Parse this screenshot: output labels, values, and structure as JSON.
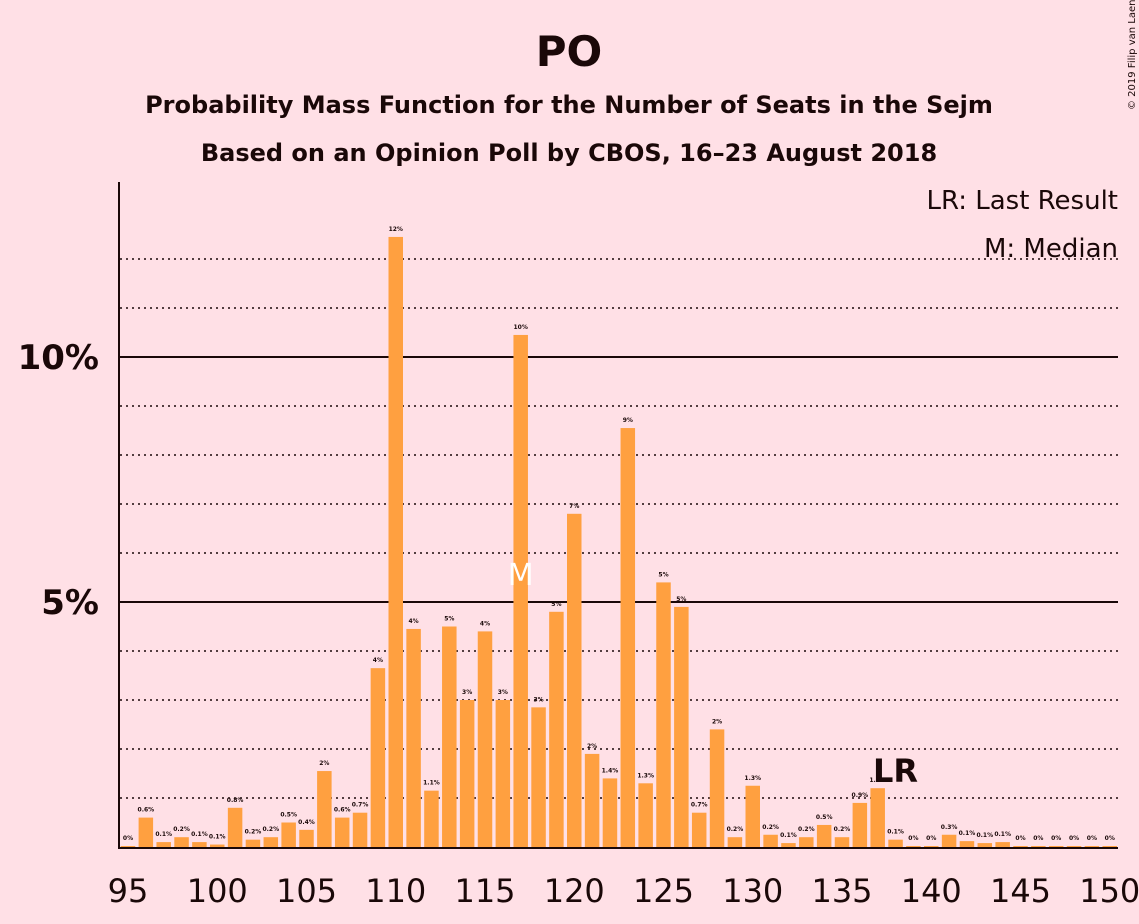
{
  "copyright": "© 2019 Filip van Laenen",
  "chart_data": {
    "type": "bar",
    "title": "PO",
    "subtitle": "Probability Mass Function for the Number of Seats in the Sejm",
    "subtitle2": "Based on an Opinion Poll by CBOS, 16–23 August 2018",
    "xlabel": "",
    "ylabel": "",
    "x_tick_labels": [
      "95",
      "100",
      "105",
      "110",
      "115",
      "120",
      "125",
      "130",
      "135",
      "140",
      "145",
      "150"
    ],
    "y_tick_labels": [
      "5%",
      "10%"
    ],
    "ylim": [
      0,
      13.5
    ],
    "grid": "dotted every 1%, solid at 5% and 10%",
    "legend_position": "top-right",
    "legend": [
      "LR: Last Result",
      "M: Median"
    ],
    "last_result_seat": 138,
    "last_result_label": "LR",
    "median_seat": 117,
    "median_label": "M",
    "bar_color": "#FFA040",
    "x": [
      95,
      96,
      97,
      98,
      99,
      100,
      101,
      102,
      103,
      104,
      105,
      106,
      107,
      108,
      109,
      110,
      111,
      112,
      113,
      114,
      115,
      116,
      117,
      118,
      119,
      120,
      121,
      122,
      123,
      124,
      125,
      126,
      127,
      128,
      129,
      130,
      131,
      132,
      133,
      134,
      135,
      136,
      137,
      138,
      139,
      140,
      141,
      142,
      143,
      144,
      145,
      146,
      147,
      148,
      149,
      150
    ],
    "values": [
      0.02,
      0.6,
      0.1,
      0.2,
      0.1,
      0.05,
      0.8,
      0.15,
      0.2,
      0.5,
      0.35,
      1.55,
      0.6,
      0.7,
      3.65,
      12.45,
      4.45,
      1.15,
      4.5,
      3.0,
      4.4,
      3.0,
      10.45,
      2.85,
      4.8,
      6.8,
      1.9,
      1.4,
      8.55,
      1.3,
      5.4,
      4.9,
      0.7,
      2.4,
      0.2,
      1.25,
      0.25,
      0.08,
      0.2,
      0.45,
      0.2,
      0.9,
      1.2,
      0.15,
      0.02,
      0.02,
      0.25,
      0.12,
      0.08,
      0.1,
      0.02,
      0.02,
      0.02,
      0.02,
      0.02,
      0.02
    ],
    "data_labels": [
      "0%",
      "0.6%",
      "0.1%",
      "0.2%",
      "0.1%",
      "0.1%",
      "0.8%",
      "0.2%",
      "0.2%",
      "0.5%",
      "0.4%",
      "2%",
      "0.6%",
      "0.7%",
      "4%",
      "12%",
      "4%",
      "1.1%",
      "5%",
      "3%",
      "4%",
      "3%",
      "10%",
      "3%",
      "5%",
      "7%",
      "2%",
      "1.4%",
      "9%",
      "1.3%",
      "5%",
      "5%",
      "0.7%",
      "2%",
      "0.2%",
      "1.3%",
      "0.2%",
      "0.1%",
      "0.2%",
      "0.5%",
      "0.2%",
      "0.9%",
      "1.2%",
      "0.1%",
      "0%",
      "0%",
      "0.3%",
      "0.1%",
      "0.1%",
      "0.1%",
      "0%",
      "0%",
      "0%",
      "0%",
      "0%",
      "0%"
    ]
  }
}
